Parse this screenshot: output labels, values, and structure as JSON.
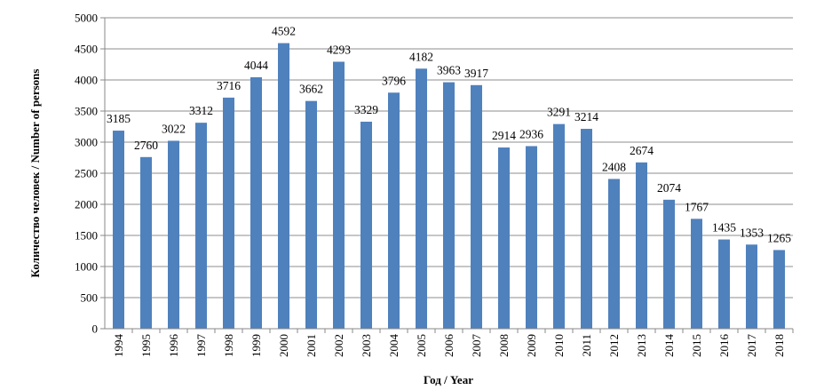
{
  "chart_data": {
    "type": "bar",
    "title": "",
    "xlabel": "Год / Year",
    "ylabel": "Количество человек / Number of persons",
    "ylim": [
      0,
      5000
    ],
    "yticks": [
      0,
      500,
      1000,
      1500,
      2000,
      2500,
      3000,
      3500,
      4000,
      4500,
      5000
    ],
    "grid": true,
    "bar_color": "#4f81bd",
    "categories": [
      "1994",
      "1995",
      "1996",
      "1997",
      "1998",
      "1999",
      "2000",
      "2001",
      "2002",
      "2003",
      "2004",
      "2005",
      "2006",
      "2007",
      "2008",
      "2009",
      "2010",
      "2011",
      "2012",
      "2013",
      "2014",
      "2015",
      "2016",
      "2017",
      "2018"
    ],
    "values": [
      3185,
      2760,
      3022,
      3312,
      3716,
      4044,
      4592,
      3662,
      4293,
      3329,
      3796,
      4182,
      3963,
      3917,
      2914,
      2936,
      3291,
      3214,
      2408,
      2674,
      2074,
      1767,
      1435,
      1353,
      1265
    ]
  }
}
